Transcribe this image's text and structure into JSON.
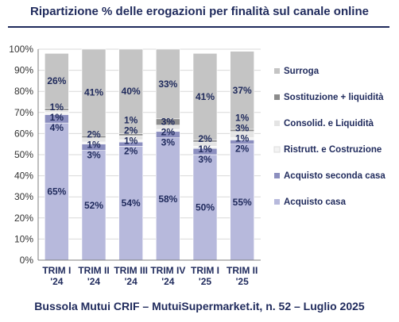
{
  "title": "Ripartizione %  delle erogazioni per finalità sul canale online",
  "footer": "Bussola Mutui CRIF – MutuiSupermarket.it, n. 52 – Luglio 2025",
  "chart_data": {
    "type": "bar",
    "stacked": true,
    "percent": true,
    "categories": [
      [
        "TRIM I",
        "'24"
      ],
      [
        "TRIM II",
        "'24"
      ],
      [
        "TRIM III",
        "'24"
      ],
      [
        "TRIM IV",
        "'24"
      ],
      [
        "TRIM I",
        "'25"
      ],
      [
        "TRIM II",
        "'25"
      ]
    ],
    "ylim": [
      0,
      100
    ],
    "yticks": [
      "0%",
      "10%",
      "20%",
      "30%",
      "40%",
      "50%",
      "60%",
      "70%",
      "80%",
      "90%",
      "100%"
    ],
    "legend_position": "right",
    "series": [
      {
        "name": "Acquisto casa",
        "color": "#b7b9dc",
        "values": [
          65,
          52,
          54,
          58,
          50,
          55
        ],
        "labels": [
          "65%",
          "52%",
          "54%",
          "58%",
          "50%",
          "55%"
        ]
      },
      {
        "name": "Acquisto seconda casa",
        "color": "#8c8fbf",
        "values": [
          4,
          3,
          2,
          3,
          3,
          2
        ],
        "labels": [
          "4%",
          "3%",
          "2%",
          "3%",
          "3%",
          "2%"
        ]
      },
      {
        "name": "Ristrutt. e Costruzione",
        "color": "#f3f3f3",
        "values": [
          1,
          1,
          1,
          1,
          1,
          1
        ],
        "labels": [
          "1%",
          "1%",
          "1%",
          "",
          "1%",
          "1%"
        ]
      },
      {
        "name": "Consolid. e Liquidità",
        "color": "#e4e4e4",
        "values": [
          1,
          2,
          2,
          2,
          2,
          3
        ],
        "labels": [
          "",
          "2%",
          "2%",
          "2%",
          "2%",
          "3%"
        ]
      },
      {
        "name": "Sostituzione + liquidità",
        "color": "#8c8c8c",
        "values": [
          1,
          1,
          1,
          3,
          1,
          1
        ],
        "labels": [
          "1%",
          "",
          "1%",
          "3%",
          "",
          "1%"
        ]
      },
      {
        "name": "Surroga",
        "color": "#c4c4c4",
        "values": [
          26,
          41,
          40,
          33,
          41,
          37
        ],
        "labels": [
          "26%",
          "41%",
          "40%",
          "33%",
          "41%",
          "37%"
        ]
      }
    ]
  }
}
